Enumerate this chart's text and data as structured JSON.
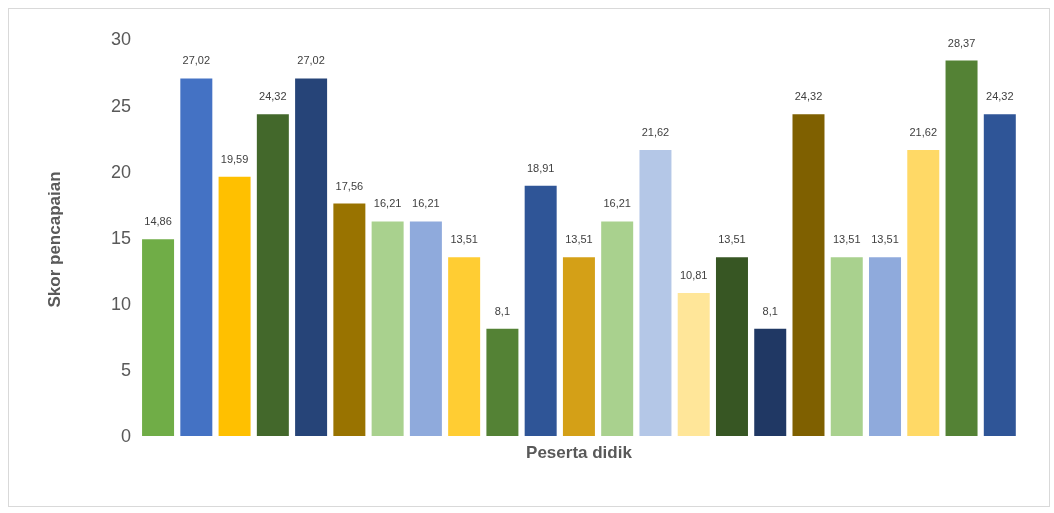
{
  "chart_data": {
    "type": "bar",
    "xlabel": "Peserta didik",
    "ylabel": "Skor pencapaian",
    "categories": [
      null,
      null,
      null,
      null,
      null,
      null,
      null,
      null,
      null,
      null,
      null,
      null,
      null,
      null,
      null,
      null,
      null,
      null,
      null,
      null,
      null,
      null,
      null
    ],
    "values": [
      14.86,
      27.02,
      19.59,
      24.32,
      27.02,
      17.56,
      16.21,
      16.21,
      13.51,
      8.1,
      18.91,
      13.51,
      16.21,
      21.62,
      10.81,
      13.51,
      8.1,
      24.32,
      13.51,
      13.51,
      21.62,
      28.37,
      24.32
    ],
    "value_labels": [
      "14,86",
      "27,02",
      "19,59",
      "24,32",
      "27,02",
      "17,56",
      "16,21",
      "16,21",
      "13,51",
      "8,1",
      "18,91",
      "13,51",
      "16,21",
      "21,62",
      "10,81",
      "13,51",
      "8,1",
      "24,32",
      "13,51",
      "13,51",
      "21,62",
      "28,37",
      "24,32"
    ],
    "colors": [
      "#70ad47",
      "#4472c4",
      "#ffc000",
      "#43682b",
      "#264478",
      "#997300",
      "#a9d18e",
      "#8faadc",
      "#ffcd33",
      "#548235",
      "#2f5597",
      "#d4a017",
      "#a9d18e",
      "#b4c7e7",
      "#ffe699",
      "#375623",
      "#203864",
      "#7f6000",
      "#a9d18e",
      "#8faadc",
      "#ffd966",
      "#548235",
      "#2f5597"
    ],
    "ylim": [
      0,
      30
    ],
    "yticks": [
      0,
      5,
      10,
      15,
      20,
      25,
      30
    ],
    "grid": false,
    "legend": false,
    "tick_labels": "y"
  }
}
